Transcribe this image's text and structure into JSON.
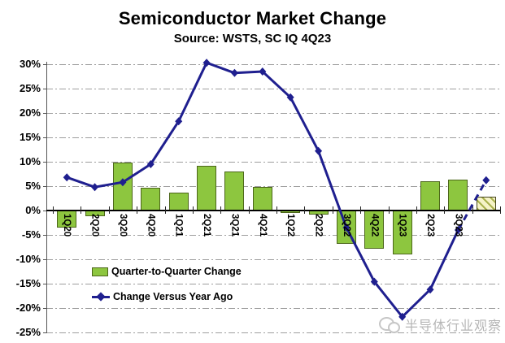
{
  "header": {
    "title": "Semiconductor Market Change",
    "subtitle": "Source: WSTS, SC IQ 4Q23"
  },
  "legend": {
    "bar_label": "Quarter-to-Quarter Change",
    "line_label": "Change Versus Year Ago"
  },
  "watermark": {
    "text": "半导体行业观察"
  },
  "colors": {
    "bar_fill": "#8dc63f",
    "bar_border": "#4c661a",
    "estimate_fill": "#f6f3c8",
    "estimate_hatch": "#aab24e",
    "line": "#1f1f8f",
    "grid": "#9e9e9e",
    "axis": "#000000",
    "watermark": "#b5b5b5"
  },
  "chart_data": {
    "type": "bar",
    "subtype": "bar-and-line combo",
    "title": "Semiconductor Market Change",
    "subtitle": "Source: WSTS, SC IQ 4Q23",
    "categories": [
      "1Q20",
      "2Q20",
      "3Q20",
      "4Q20",
      "1Q21",
      "2Q21",
      "3Q21",
      "4Q21",
      "1Q22",
      "2Q22",
      "3Q22",
      "4Q22",
      "1Q23",
      "2Q23",
      "3Q23",
      ""
    ],
    "series": [
      {
        "name": "Quarter-to-Quarter Change",
        "type": "bar",
        "unit": "%",
        "values": [
          -3.5,
          -1.2,
          9.8,
          4.7,
          3.7,
          9.2,
          8.0,
          4.8,
          -0.5,
          -0.9,
          -6.8,
          -7.8,
          -9.0,
          6.0,
          6.3,
          2.8
        ],
        "last_point_is_estimate": true
      },
      {
        "name": "Change Versus Year Ago",
        "type": "line",
        "unit": "%",
        "values": [
          6.8,
          4.8,
          5.8,
          9.5,
          18.3,
          30.3,
          28.2,
          28.5,
          23.2,
          12.2,
          -3.5,
          -14.6,
          -21.8,
          -16.2,
          -4.0,
          6.2
        ],
        "last_point_is_estimate": true
      }
    ],
    "xlabel": "",
    "ylabel": "",
    "ylim": [
      -25,
      30
    ],
    "ytick_step": 5,
    "ytick_labels": [
      "30%",
      "25%",
      "20%",
      "15%",
      "10%",
      "5%",
      "0%",
      "-5%",
      "-10%",
      "-15%",
      "-20%",
      "-25%"
    ],
    "grid": "horizontal dash-dot gridlines",
    "legend_position": "inside bottom-left",
    "notes": "last category (4Q23 estimate) drawn as hatched bar and dashed line segment, no x label"
  }
}
